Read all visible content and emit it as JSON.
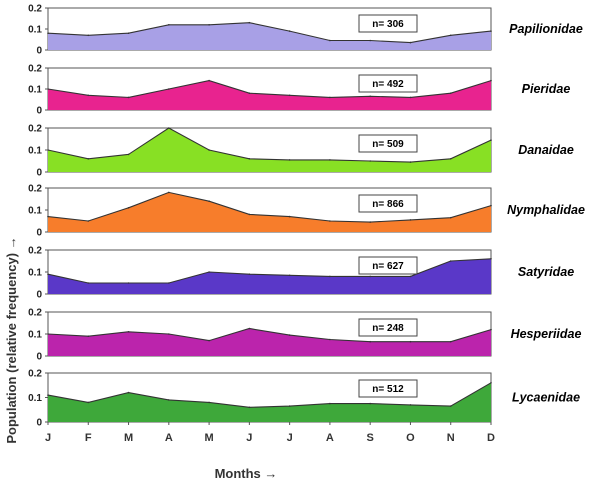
{
  "chart_data": {
    "type": "area",
    "months": [
      "J",
      "F",
      "M",
      "A",
      "M",
      "J",
      "J",
      "A",
      "S",
      "O",
      "N",
      "D"
    ],
    "xlabel": "Months →",
    "ylabel": "Population (relative frequency) →",
    "ylim": [
      0,
      0.2
    ],
    "yticks": [
      "0",
      "0.1",
      "0.2"
    ],
    "panels": [
      {
        "name": "Papilionidae",
        "n": "n= 306",
        "color": "#a8a0e6",
        "values": [
          0.08,
          0.07,
          0.08,
          0.12,
          0.12,
          0.13,
          0.09,
          0.045,
          0.045,
          0.035,
          0.07,
          0.09
        ]
      },
      {
        "name": "Pieridae",
        "n": "n= 492",
        "color": "#e8238f",
        "values": [
          0.1,
          0.07,
          0.06,
          0.1,
          0.14,
          0.08,
          0.07,
          0.06,
          0.065,
          0.06,
          0.08,
          0.14
        ]
      },
      {
        "name": "Danaidae",
        "n": "n= 509",
        "color": "#88e024",
        "values": [
          0.1,
          0.06,
          0.08,
          0.2,
          0.1,
          0.06,
          0.055,
          0.055,
          0.05,
          0.045,
          0.06,
          0.145
        ]
      },
      {
        "name": "Nymphalidae",
        "n": "n= 866",
        "color": "#f77d2b",
        "values": [
          0.07,
          0.05,
          0.11,
          0.18,
          0.14,
          0.08,
          0.07,
          0.05,
          0.045,
          0.055,
          0.065,
          0.12
        ]
      },
      {
        "name": "Satyridae",
        "n": "n= 627",
        "color": "#5a38c8",
        "values": [
          0.09,
          0.05,
          0.05,
          0.05,
          0.1,
          0.09,
          0.085,
          0.08,
          0.08,
          0.08,
          0.15,
          0.16
        ]
      },
      {
        "name": "Hesperiidae",
        "n": "n= 248",
        "color": "#bb24ac",
        "values": [
          0.1,
          0.09,
          0.11,
          0.1,
          0.07,
          0.125,
          0.095,
          0.075,
          0.065,
          0.065,
          0.065,
          0.12
        ]
      },
      {
        "name": "Lycaenidae",
        "n": "n= 512",
        "color": "#3ea83a",
        "values": [
          0.11,
          0.08,
          0.12,
          0.09,
          0.08,
          0.06,
          0.065,
          0.075,
          0.075,
          0.07,
          0.065,
          0.16
        ]
      }
    ]
  }
}
